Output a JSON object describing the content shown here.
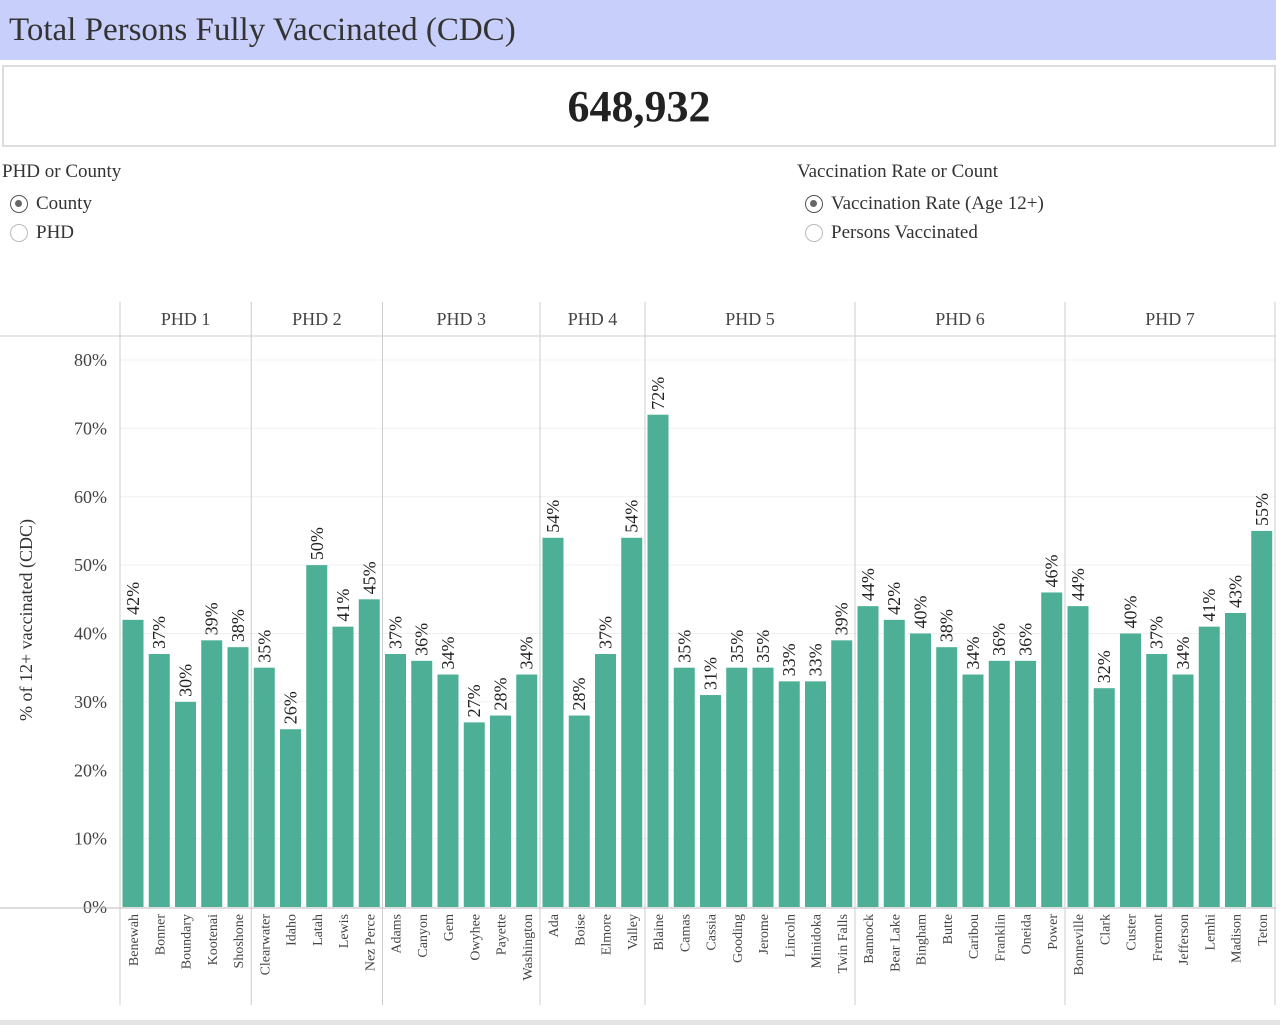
{
  "title": "Total Persons Fully Vaccinated (CDC)",
  "kpi": "648,932",
  "controls": {
    "group": {
      "label": "PHD or County",
      "options": [
        {
          "label": "County",
          "selected": true
        },
        {
          "label": "PHD",
          "selected": false
        }
      ]
    },
    "measure": {
      "label": "Vaccination Rate or Count",
      "options": [
        {
          "label": "Vaccination Rate (Age 12+)",
          "selected": true
        },
        {
          "label": "Persons Vaccinated",
          "selected": false
        }
      ]
    }
  },
  "chart_data": {
    "type": "bar",
    "ylabel": "% of 12+ vaccinated (CDC)",
    "ylim": [
      0,
      80
    ],
    "yticks": [
      "0%",
      "10%",
      "20%",
      "30%",
      "40%",
      "50%",
      "60%",
      "70%",
      "80%"
    ],
    "grid": true,
    "bar_color": "#4caf96",
    "panels": [
      {
        "name": "PHD 1",
        "categories": [
          "Benewah",
          "Bonner",
          "Boundary",
          "Kootenai",
          "Shoshone"
        ],
        "values": [
          42,
          37,
          30,
          39,
          38
        ]
      },
      {
        "name": "PHD 2",
        "categories": [
          "Clearwater",
          "Idaho",
          "Latah",
          "Lewis",
          "Nez Perce"
        ],
        "values": [
          35,
          26,
          50,
          41,
          45
        ]
      },
      {
        "name": "PHD 3",
        "categories": [
          "Adams",
          "Canyon",
          "Gem",
          "Owyhee",
          "Payette",
          "Washington"
        ],
        "values": [
          37,
          36,
          34,
          27,
          28,
          34
        ]
      },
      {
        "name": "PHD 4",
        "categories": [
          "Ada",
          "Boise",
          "Elmore",
          "Valley"
        ],
        "values": [
          54,
          28,
          37,
          54
        ]
      },
      {
        "name": "PHD 5",
        "categories": [
          "Blaine",
          "Camas",
          "Cassia",
          "Gooding",
          "Jerome",
          "Lincoln",
          "Minidoka",
          "Twin Falls"
        ],
        "values": [
          72,
          35,
          31,
          35,
          35,
          33,
          33,
          39
        ]
      },
      {
        "name": "PHD 6",
        "categories": [
          "Bannock",
          "Bear Lake",
          "Bingham",
          "Butte",
          "Caribou",
          "Franklin",
          "Oneida",
          "Power"
        ],
        "values": [
          44,
          42,
          40,
          38,
          34,
          36,
          36,
          46
        ]
      },
      {
        "name": "PHD 7",
        "categories": [
          "Bonneville",
          "Clark",
          "Custer",
          "Fremont",
          "Jefferson",
          "Lemhi",
          "Madison",
          "Teton"
        ],
        "values": [
          44,
          32,
          40,
          37,
          34,
          41,
          43,
          55
        ]
      }
    ]
  }
}
